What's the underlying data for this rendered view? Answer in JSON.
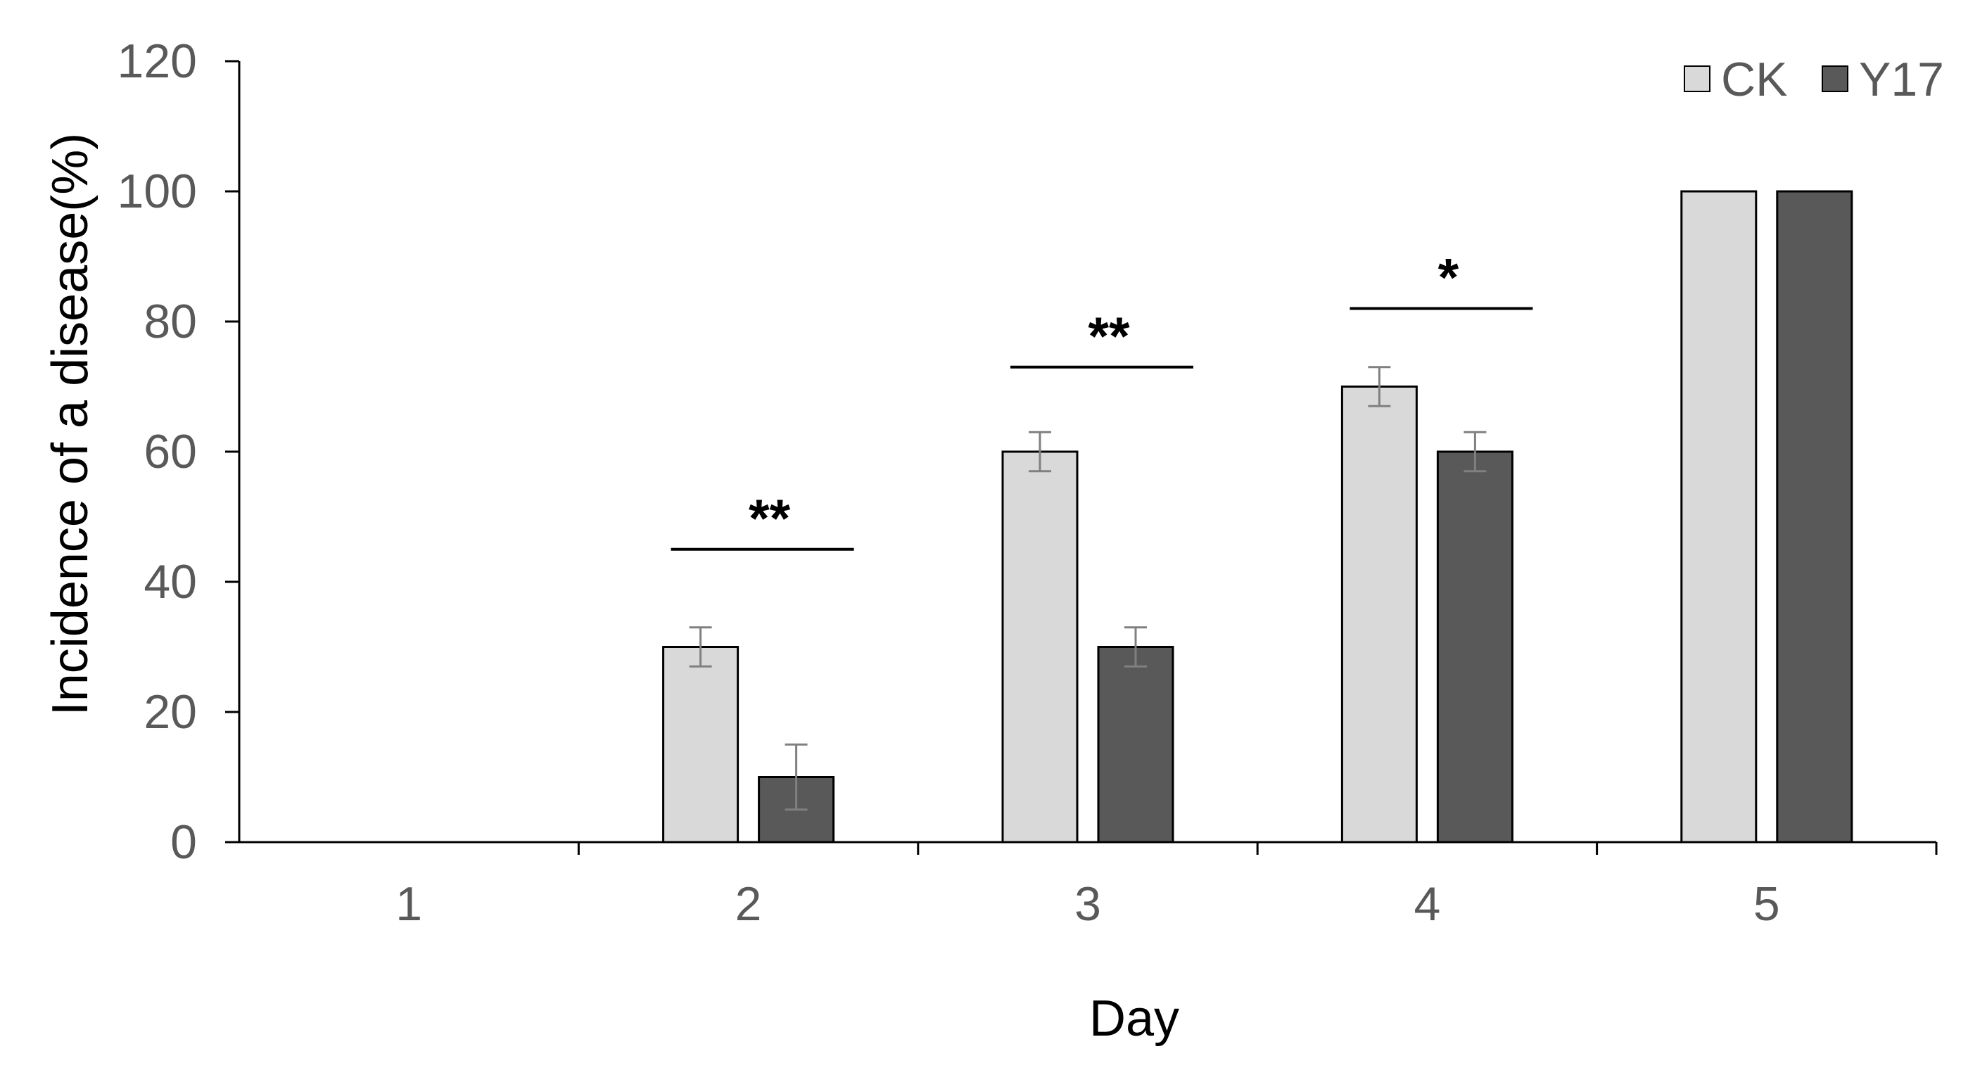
{
  "chart_data": {
    "type": "bar",
    "categories": [
      "1",
      "2",
      "3",
      "4",
      "5"
    ],
    "series": [
      {
        "name": "CK",
        "values": [
          0,
          30,
          60,
          70,
          100
        ],
        "errors": [
          0,
          3,
          3,
          3,
          0
        ],
        "color": "#d9d9d9"
      },
      {
        "name": "Y17",
        "values": [
          0,
          10,
          30,
          60,
          100
        ],
        "errors": [
          0,
          5,
          3,
          3,
          0
        ],
        "color": "#595959"
      }
    ],
    "xlabel": "Day",
    "ylabel": "Incidence of a disease(%)",
    "ylim": [
      0,
      120
    ],
    "yticks": [
      "0",
      "20",
      "40",
      "60",
      "80",
      "100",
      "120"
    ],
    "grid": false,
    "legend": "top-right",
    "annotations": [
      {
        "category": "2",
        "text": "**",
        "y": 45
      },
      {
        "category": "3",
        "text": "**",
        "y": 73
      },
      {
        "category": "4",
        "text": "*",
        "y": 82
      }
    ]
  }
}
